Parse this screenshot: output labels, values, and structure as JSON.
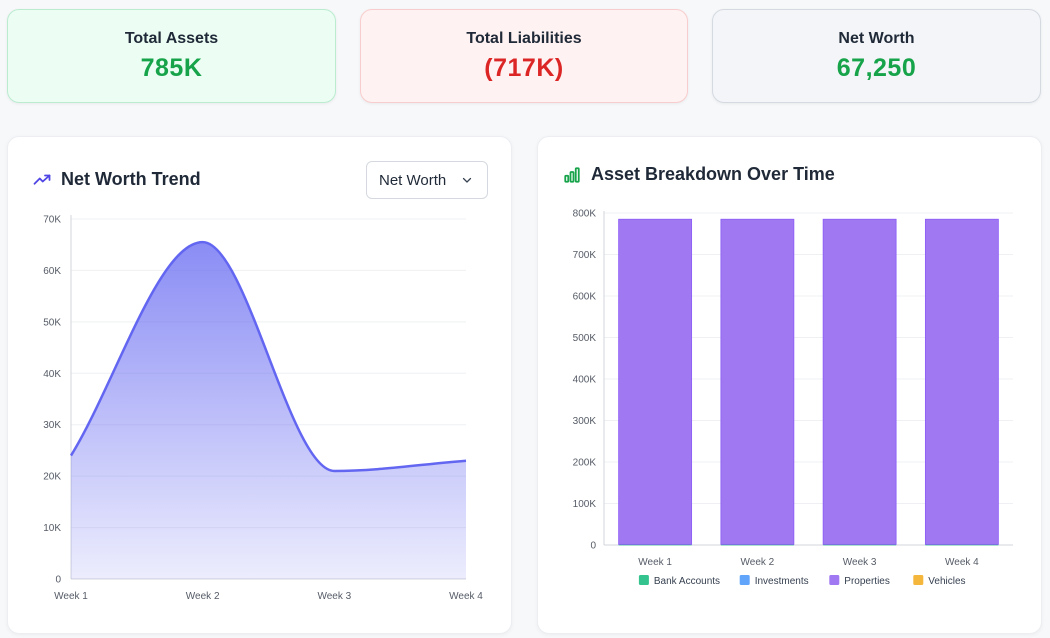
{
  "stats": {
    "assets": {
      "label": "Total Assets",
      "value": "785K",
      "color": "#16a34a"
    },
    "liabilities": {
      "label": "Total Liabilities",
      "value": "(717K)",
      "color": "#dc2626"
    },
    "net_worth": {
      "label": "Net Worth",
      "value": "67,250",
      "color": "#16a34a"
    }
  },
  "trend_card": {
    "title": "Net Worth Trend",
    "icon": "trending-up-icon",
    "select": {
      "selected": "Net Worth"
    }
  },
  "assets_card": {
    "title": "Asset Breakdown Over Time",
    "icon": "bar-chart-icon"
  },
  "chart_data": [
    {
      "type": "area",
      "title": "Net Worth Trend",
      "categories": [
        "Week 1",
        "Week 2",
        "Week 3",
        "Week 4"
      ],
      "series": [
        {
          "values": [
            24000,
            65500,
            21000,
            23000
          ],
          "color": "#6366f1"
        }
      ],
      "yticks": [
        "0",
        "10K",
        "20K",
        "30K",
        "40K",
        "50K",
        "60K",
        "70K"
      ],
      "ylim": [
        0,
        70000
      ],
      "grid": true
    },
    {
      "type": "bar",
      "title": "Asset Breakdown Over Time",
      "stacked": true,
      "categories": [
        "Week 1",
        "Week 2",
        "Week 3",
        "Week 4"
      ],
      "series": [
        {
          "name": "Bank Accounts",
          "values": [
            1500,
            1500,
            1500,
            1500
          ],
          "color": "#34c38f"
        },
        {
          "name": "Investments",
          "values": [
            0,
            0,
            0,
            0
          ],
          "color": "#60a5fa"
        },
        {
          "name": "Properties",
          "values": [
            783500,
            783500,
            783500,
            783500
          ],
          "color": "#a078f2"
        },
        {
          "name": "Vehicles",
          "values": [
            0,
            0,
            0,
            0
          ],
          "color": "#f5b73b"
        }
      ],
      "yticks": [
        "0",
        "100K",
        "200K",
        "300K",
        "400K",
        "500K",
        "600K",
        "700K",
        "800K"
      ],
      "ylim": [
        0,
        800000
      ],
      "legend": "bottom",
      "grid": true
    }
  ]
}
